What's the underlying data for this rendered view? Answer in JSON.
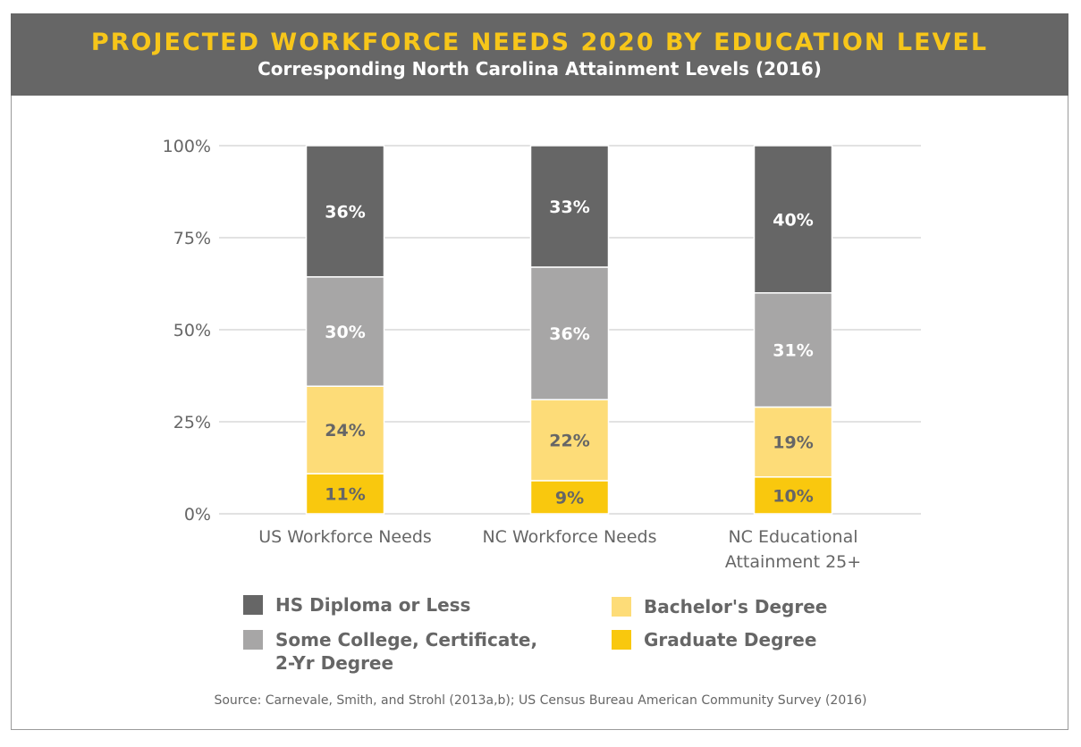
{
  "header": {
    "title": "PROJECTED WORKFORCE NEEDS 2020 BY EDUCATION LEVEL",
    "subtitle": "Corresponding North Carolina Attainment Levels (2016)"
  },
  "chart_data": {
    "type": "bar",
    "stacked": true,
    "categories": [
      "US Workforce Needs",
      "NC Workforce Needs",
      "NC Educational Attainment 25+"
    ],
    "category_lines": [
      [
        "US Workforce Needs"
      ],
      [
        "NC Workforce Needs"
      ],
      [
        "NC Educational",
        "Attainment 25+"
      ]
    ],
    "series": [
      {
        "name": "Graduate Degree",
        "color": "#f9c80e",
        "values": [
          11,
          9,
          10
        ]
      },
      {
        "name": "Bachelor's Degree",
        "color": "#fddc78",
        "values": [
          24,
          22,
          19
        ]
      },
      {
        "name": "Some College, Certificate, 2-Yr Degree",
        "color": "#a7a6a6",
        "values": [
          30,
          36,
          31
        ]
      },
      {
        "name": "HS Diploma or Less",
        "color": "#666666",
        "values": [
          36,
          33,
          40
        ]
      }
    ],
    "yticks": [
      "0%",
      "25%",
      "50%",
      "75%",
      "100%"
    ],
    "ylim": [
      0,
      100
    ],
    "grid": true,
    "legend": "bottom"
  },
  "legend": {
    "items": [
      {
        "label": "HS Diploma or Less",
        "color": "#666666"
      },
      {
        "label": "Some College, Certificate, 2-Yr Degree",
        "color": "#a7a6a6"
      },
      {
        "label": "Bachelor's Degree",
        "color": "#fddc78"
      },
      {
        "label": "Graduate Degree",
        "color": "#f9c80e"
      }
    ]
  },
  "source": "Source: Carnevale, Smith, and Strohl (2013a,b); US Census Bureau American Community Survey (2016)"
}
